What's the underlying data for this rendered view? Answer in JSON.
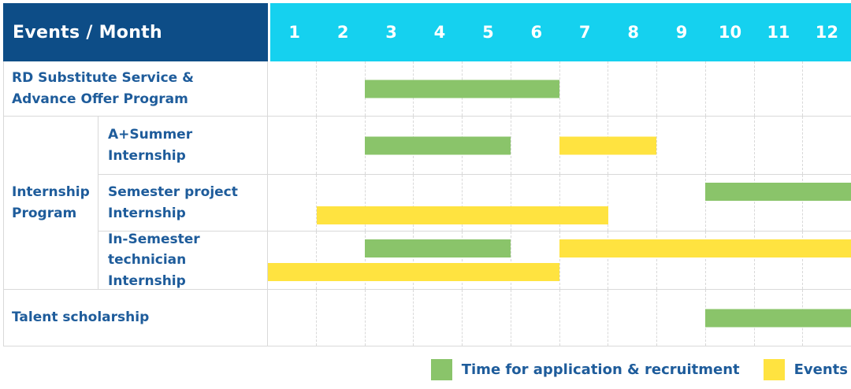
{
  "header": {
    "events_month_label": "Events / Month",
    "months": [
      "1",
      "2",
      "3",
      "4",
      "5",
      "6",
      "7",
      "8",
      "9",
      "10",
      "11",
      "12"
    ]
  },
  "colors": {
    "header_bg": "#0d4d87",
    "months_bg": "#15d1ef",
    "green": "#8ac46a",
    "yellow": "#ffe340",
    "label_text": "#1e5c9b",
    "grid_line": "#d9d9d9"
  },
  "chart_data": {
    "type": "bar",
    "variant": "gantt-schedule",
    "title": "Events / Month",
    "xlabel": "Month",
    "x_range": [
      1,
      12
    ],
    "x_ticks": [
      "1",
      "2",
      "3",
      "4",
      "5",
      "6",
      "7",
      "8",
      "9",
      "10",
      "11",
      "12"
    ],
    "grid": "dashed-vertical-per-month",
    "legend_position": "bottom-right",
    "rows": [
      {
        "group": "",
        "label": "RD Substitute Service & Advance Offer Program",
        "lines": [
          "RD Substitute Service &",
          "Advance Offer Program"
        ],
        "bars": [
          {
            "series": "Time for application & recruitment",
            "color": "#8ac46a",
            "start_month": 3,
            "end_month": 6,
            "line": "center"
          }
        ]
      },
      {
        "group": "Internship Program",
        "label": "A+Summer Internship",
        "lines": [
          "A+Summer",
          "Internship"
        ],
        "bars": [
          {
            "series": "Time for application & recruitment",
            "color": "#8ac46a",
            "start_month": 3,
            "end_month": 5,
            "line": "center"
          },
          {
            "series": "Events",
            "color": "#ffe340",
            "start_month": 7,
            "end_month": 8,
            "line": "center"
          }
        ]
      },
      {
        "group": "Internship Program",
        "label": "Semester project Internship",
        "lines": [
          "Semester project",
          "Internship"
        ],
        "bars": [
          {
            "series": "Time for application & recruitment",
            "color": "#8ac46a",
            "start_month": 10,
            "end_month": 12,
            "line": "top"
          },
          {
            "series": "Events",
            "color": "#ffe340",
            "start_month": 2,
            "end_month": 7,
            "line": "bottom"
          }
        ]
      },
      {
        "group": "Internship Program",
        "label": "In-Semester technician Internship",
        "lines": [
          "In-Semester",
          "technician Internship"
        ],
        "bars": [
          {
            "series": "Time for application & recruitment",
            "color": "#8ac46a",
            "start_month": 3,
            "end_month": 5,
            "line": "top"
          },
          {
            "series": "Events",
            "color": "#ffe340",
            "start_month": 7,
            "end_month": 12,
            "line": "top"
          },
          {
            "series": "Events",
            "color": "#ffe340",
            "start_month": 1,
            "end_month": 6,
            "line": "bottom"
          }
        ]
      },
      {
        "group": "",
        "label": "Talent scholarship",
        "lines": [
          "Talent scholarship"
        ],
        "bars": [
          {
            "series": "Time for application & recruitment",
            "color": "#8ac46a",
            "start_month": 10,
            "end_month": 12,
            "line": "center"
          }
        ]
      }
    ],
    "group_label": {
      "label": "Internship Program",
      "lines": [
        "Internship",
        "Program"
      ]
    },
    "legend": [
      {
        "label": "Time for application & recruitment",
        "color": "#8ac46a"
      },
      {
        "label": "Events",
        "color": "#ffe340"
      }
    ]
  }
}
